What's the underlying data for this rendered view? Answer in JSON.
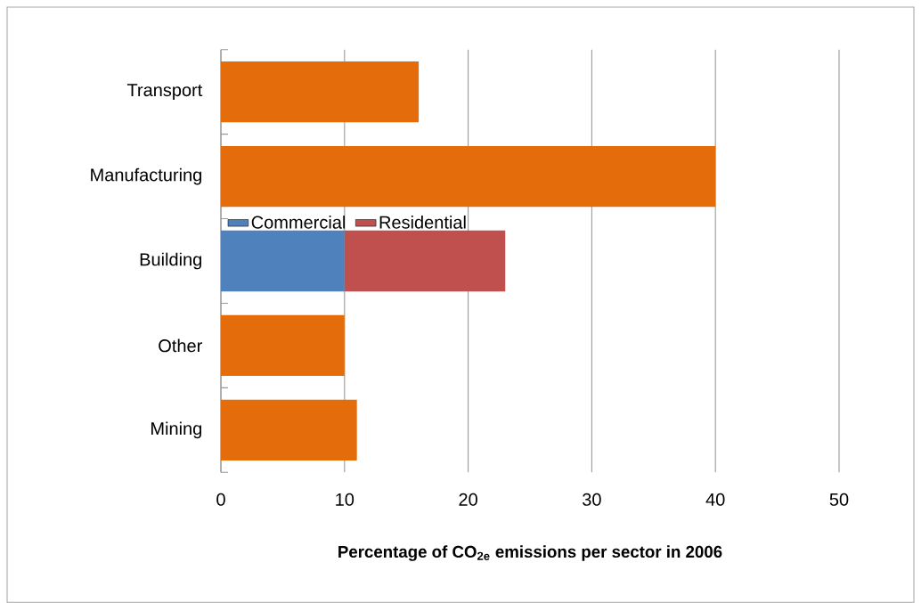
{
  "chart_data": {
    "type": "bar",
    "orientation": "horizontal",
    "stacked": true,
    "categories": [
      "Transport",
      "Manufacturing",
      "Building",
      "Other",
      "Mining"
    ],
    "series": [
      {
        "color": "#e46c0a",
        "values": [
          16,
          40,
          null,
          10,
          11
        ]
      },
      {
        "name": "Commercial",
        "color": "#4f81bd",
        "values": [
          null,
          null,
          10,
          null,
          null
        ]
      },
      {
        "name": "Residential",
        "color": "#c0504d",
        "values": [
          null,
          null,
          13,
          null,
          null
        ]
      }
    ],
    "xlabel": "Percentage of CO$_{2e}$ emissions per sector in 2006",
    "xlim": [
      0,
      50
    ],
    "xticks": [
      0,
      10,
      20,
      30,
      40,
      50
    ],
    "grid": "x",
    "legend": "left"
  }
}
